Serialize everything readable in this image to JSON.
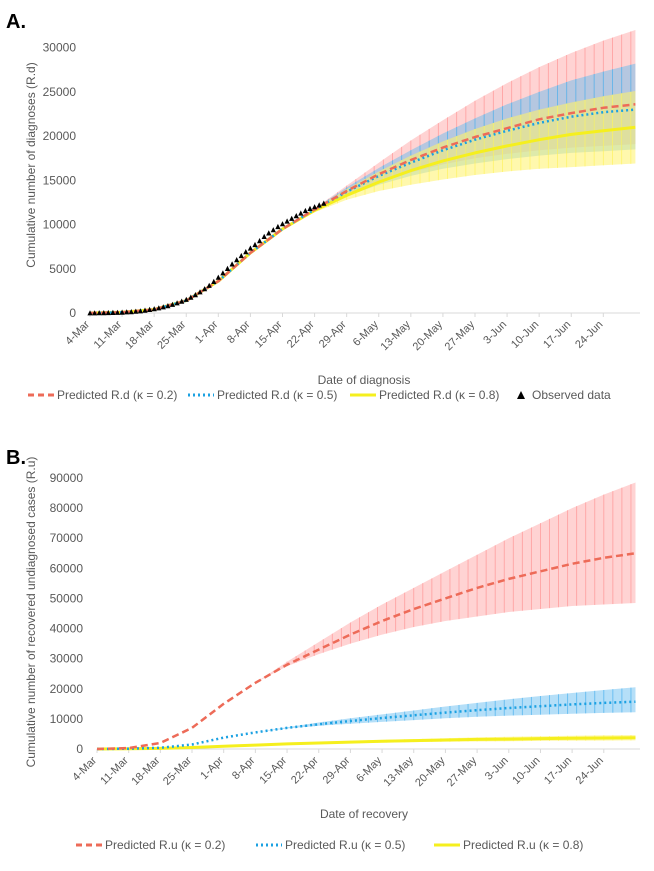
{
  "colors": {
    "k02": "#ED6B58",
    "k02_band": "#FF9D9D",
    "k05": "#1BA1E2",
    "k05_band": "#5BB8F0",
    "k08": "#F5EF1E",
    "k08_band": "#FFF36A",
    "observed": "#000000",
    "axis": "#D9D9D9",
    "text": "#595959"
  },
  "chart_data": [
    {
      "panel_label": "A.",
      "type": "line",
      "xlabel": "Date of diagnosis",
      "ylabel": "Cumulative number of diagnoses (R.d)",
      "ylim": [
        0,
        32000
      ],
      "yticks": [
        0,
        5000,
        10000,
        15000,
        20000,
        25000,
        30000
      ],
      "ytick_labels": [
        "0",
        "5000",
        "10000",
        "15000",
        "20000",
        "25000",
        "30000"
      ],
      "x_day_range": [
        0,
        120
      ],
      "xtick_days": [
        0,
        7,
        14,
        21,
        28,
        35,
        42,
        49,
        56,
        63,
        70,
        77,
        84,
        91,
        98,
        105,
        112
      ],
      "xtick_labels": [
        "4-Mar",
        "11-Mar",
        "18-Mar",
        "25-Mar",
        "1-Apr",
        "8-Apr",
        "15-Apr",
        "22-Apr",
        "29-Apr",
        "6-May",
        "13-May",
        "20-May",
        "27-May",
        "3-Jun",
        "10-Jun",
        "17-Jun",
        "24-Jun"
      ],
      "legend": [
        {
          "label": "Predicted R.d (κ = 0.2)",
          "style": "dashed",
          "color_key": "k02"
        },
        {
          "label": "Predicted R.d (κ = 0.5)",
          "style": "dotted",
          "color_key": "k05"
        },
        {
          "label": "Predicted R.d (κ = 0.8)",
          "style": "solid",
          "color_key": "k08"
        },
        {
          "label": "Observed data",
          "style": "marker",
          "color_key": "observed"
        }
      ],
      "series": [
        {
          "name": "Predicted R.d (κ = 0.2)",
          "style": "dashed",
          "color_key": "k02",
          "band_key": "k02_band",
          "x": [
            0,
            7,
            14,
            21,
            28,
            35,
            42,
            49,
            56,
            63,
            70,
            77,
            84,
            91,
            98,
            105,
            112,
            119
          ],
          "y": [
            0,
            80,
            400,
            1400,
            3600,
            6800,
            9500,
            11700,
            13800,
            15700,
            17300,
            18700,
            19900,
            20900,
            21900,
            22600,
            23200,
            23600
          ],
          "lower": [
            0,
            80,
            400,
            1400,
            3600,
            6800,
            9500,
            11600,
            13300,
            14700,
            15900,
            16800,
            17500,
            18000,
            18400,
            18700,
            18900,
            19100
          ],
          "upper": [
            0,
            80,
            400,
            1400,
            3600,
            6800,
            9500,
            11800,
            14400,
            17000,
            19500,
            21800,
            24000,
            26000,
            27800,
            29400,
            30800,
            32000
          ]
        },
        {
          "name": "Predicted R.d (κ = 0.5)",
          "style": "dotted",
          "color_key": "k05",
          "band_key": "k05_band",
          "x": [
            0,
            7,
            14,
            21,
            28,
            35,
            42,
            49,
            56,
            63,
            70,
            77,
            84,
            91,
            98,
            105,
            112,
            119
          ],
          "y": [
            0,
            80,
            400,
            1400,
            3600,
            6800,
            9500,
            11700,
            13700,
            15500,
            17000,
            18400,
            19600,
            20600,
            21500,
            22200,
            22700,
            23000
          ],
          "lower": [
            0,
            80,
            400,
            1400,
            3600,
            6800,
            9500,
            11600,
            13200,
            14500,
            15500,
            16300,
            16900,
            17400,
            17800,
            18100,
            18300,
            18500
          ],
          "upper": [
            0,
            80,
            400,
            1400,
            3600,
            6800,
            9500,
            11800,
            14200,
            16400,
            18400,
            20300,
            22000,
            23600,
            25000,
            26300,
            27300,
            28200
          ]
        },
        {
          "name": "Predicted R.d (κ = 0.8)",
          "style": "solid",
          "color_key": "k08",
          "band_key": "k08_band",
          "x": [
            0,
            7,
            14,
            21,
            28,
            35,
            42,
            49,
            56,
            63,
            70,
            77,
            84,
            91,
            98,
            105,
            112,
            119
          ],
          "y": [
            0,
            80,
            400,
            1400,
            3600,
            6800,
            9500,
            11600,
            13300,
            14800,
            16100,
            17200,
            18100,
            18900,
            19600,
            20200,
            20600,
            21000
          ],
          "lower": [
            0,
            80,
            400,
            1400,
            3600,
            6800,
            9500,
            11400,
            12800,
            13800,
            14500,
            15100,
            15600,
            16000,
            16300,
            16500,
            16700,
            16900
          ],
          "upper": [
            0,
            80,
            400,
            1400,
            3600,
            6800,
            9500,
            11800,
            14000,
            16000,
            17800,
            19400,
            20800,
            22000,
            23000,
            23800,
            24500,
            25100
          ]
        }
      ],
      "observed": {
        "name": "Observed data",
        "x": [
          0,
          1,
          2,
          3,
          4,
          5,
          6,
          7,
          8,
          9,
          10,
          11,
          12,
          13,
          14,
          15,
          16,
          17,
          18,
          19,
          20,
          21,
          22,
          23,
          24,
          25,
          26,
          27,
          28,
          29,
          30,
          31,
          32,
          33,
          34,
          35,
          36,
          37,
          38,
          39,
          40,
          41,
          42,
          43,
          44,
          45,
          46,
          47,
          48,
          49,
          50,
          51
        ],
        "y": [
          0,
          0,
          10,
          20,
          30,
          40,
          60,
          80,
          110,
          140,
          180,
          230,
          300,
          380,
          460,
          560,
          680,
          810,
          960,
          1130,
          1320,
          1530,
          1780,
          2060,
          2370,
          2720,
          3110,
          3550,
          4020,
          4520,
          5020,
          5530,
          6020,
          6480,
          6920,
          7330,
          7720,
          8160,
          8640,
          9040,
          9400,
          9760,
          10080,
          10380,
          10690,
          10990,
          11280,
          11570,
          11800,
          12000,
          12200,
          12400
        ]
      }
    },
    {
      "panel_label": "B.",
      "type": "line",
      "xlabel": "Date of recovery",
      "ylabel": "Cumulative number of recovered undiagnosed cases (R.u)",
      "ylim": [
        0,
        90000
      ],
      "yticks": [
        0,
        10000,
        20000,
        30000,
        40000,
        50000,
        60000,
        70000,
        80000,
        90000
      ],
      "ytick_labels": [
        "0",
        "10000",
        "20000",
        "30000",
        "40000",
        "50000",
        "60000",
        "70000",
        "80000",
        "90000"
      ],
      "x_day_range": [
        0,
        120
      ],
      "xtick_days": [
        0,
        7,
        14,
        21,
        28,
        35,
        42,
        49,
        56,
        63,
        70,
        77,
        84,
        91,
        98,
        105,
        112
      ],
      "xtick_labels": [
        "4-Mar",
        "11-Mar",
        "18-Mar",
        "25-Mar",
        "1-Apr",
        "8-Apr",
        "15-Apr",
        "22-Apr",
        "29-Apr",
        "6-May",
        "13-May",
        "20-May",
        "27-May",
        "3-Jun",
        "10-Jun",
        "17-Jun",
        "24-Jun"
      ],
      "legend": [
        {
          "label": "Predicted R.u (κ = 0.2)",
          "style": "dashed",
          "color_key": "k02"
        },
        {
          "label": "Predicted R.u (κ = 0.5)",
          "style": "dotted",
          "color_key": "k05"
        },
        {
          "label": "Predicted R.u (κ = 0.8)",
          "style": "solid",
          "color_key": "k08"
        }
      ],
      "series": [
        {
          "name": "Predicted R.u (κ = 0.2)",
          "style": "dashed",
          "color_key": "k02",
          "band_key": "k02_band",
          "x": [
            0,
            7,
            14,
            21,
            28,
            35,
            42,
            49,
            56,
            63,
            70,
            77,
            84,
            91,
            98,
            105,
            112,
            119
          ],
          "y": [
            0,
            300,
            2000,
            7000,
            15000,
            22000,
            28000,
            33000,
            38000,
            42500,
            46500,
            50000,
            53500,
            56500,
            59000,
            61500,
            63500,
            65000
          ],
          "lower": [
            0,
            300,
            2000,
            7000,
            15000,
            22000,
            27500,
            31500,
            35000,
            38000,
            40500,
            42500,
            44000,
            45500,
            46500,
            47500,
            48000,
            48500
          ],
          "upper": [
            0,
            300,
            2000,
            7000,
            15000,
            22000,
            29000,
            35500,
            42000,
            48000,
            53500,
            59000,
            64500,
            70000,
            75000,
            80000,
            84500,
            88500
          ]
        },
        {
          "name": "Predicted R.u (κ = 0.5)",
          "style": "dotted",
          "color_key": "k05",
          "band_key": "k05_band",
          "x": [
            0,
            7,
            14,
            21,
            28,
            35,
            42,
            49,
            56,
            63,
            70,
            77,
            84,
            91,
            98,
            105,
            112,
            119
          ],
          "y": [
            0,
            100,
            400,
            1500,
            3800,
            5500,
            7000,
            8200,
            9300,
            10300,
            11200,
            12100,
            12900,
            13600,
            14200,
            14800,
            15300,
            15700
          ],
          "lower": [
            0,
            100,
            400,
            1500,
            3800,
            5500,
            6800,
            7700,
            8400,
            9000,
            9600,
            10200,
            10700,
            11100,
            11400,
            11700,
            12000,
            12200
          ],
          "upper": [
            0,
            100,
            400,
            1500,
            3800,
            5500,
            7200,
            8800,
            10200,
            11500,
            12800,
            14100,
            15300,
            16500,
            17600,
            18600,
            19600,
            20500
          ]
        },
        {
          "name": "Predicted R.u (κ = 0.8)",
          "style": "solid",
          "color_key": "k08",
          "band_key": "k08_band",
          "x": [
            0,
            7,
            14,
            21,
            28,
            35,
            42,
            49,
            56,
            63,
            70,
            77,
            84,
            91,
            98,
            105,
            112,
            119
          ],
          "y": [
            0,
            50,
            200,
            500,
            900,
            1300,
            1700,
            2000,
            2300,
            2600,
            2800,
            3000,
            3200,
            3300,
            3450,
            3550,
            3650,
            3750
          ],
          "lower": [
            0,
            50,
            200,
            500,
            900,
            1200,
            1500,
            1700,
            1900,
            2100,
            2300,
            2400,
            2500,
            2600,
            2700,
            2750,
            2800,
            2850
          ],
          "upper": [
            0,
            50,
            200,
            500,
            900,
            1400,
            1900,
            2300,
            2700,
            3000,
            3300,
            3600,
            3850,
            4050,
            4250,
            4400,
            4550,
            4650
          ]
        }
      ]
    }
  ]
}
